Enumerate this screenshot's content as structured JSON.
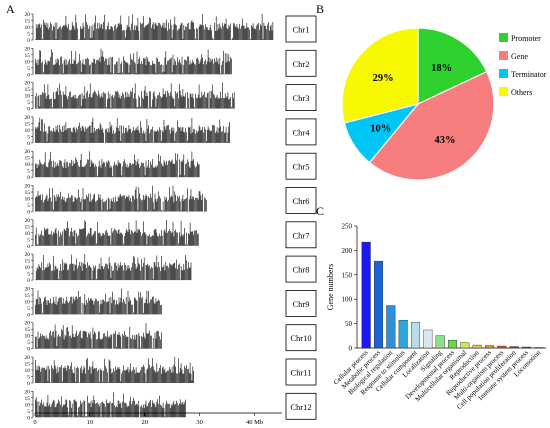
{
  "panel_letters": {
    "a": "A",
    "b": "B",
    "c": "C"
  },
  "chart_data": [
    {
      "type": "bar",
      "panel": "A",
      "chromosomes": [
        "Chr1",
        "Chr2",
        "Chr3",
        "Chr4",
        "Chr5",
        "Chr6",
        "Chr7",
        "Chr8",
        "Chr9",
        "Chr10",
        "Chr11",
        "Chr12"
      ],
      "chromosome_length_mb": [
        43.3,
        35.9,
        36.4,
        35.5,
        30.0,
        31.2,
        29.7,
        28.4,
        23.0,
        23.2,
        29.0,
        27.5
      ],
      "ylim": [
        0,
        20
      ],
      "yticks": [
        "0",
        "5",
        "10",
        "15",
        "20"
      ],
      "xlim": [
        0,
        45
      ],
      "xticks": [
        "0",
        "10",
        "20",
        "30",
        "40 Mb"
      ],
      "xtick_values": [
        0,
        10,
        20,
        30,
        40
      ],
      "xlabel": "",
      "ylabel": ""
    },
    {
      "type": "pie",
      "panel": "B",
      "labels": [
        "Promoter",
        "Gene",
        "Terminator",
        "Others"
      ],
      "values": [
        18,
        43,
        10,
        29
      ],
      "value_labels": [
        "18%",
        "43%",
        "10%",
        "29%"
      ],
      "colors": [
        "#2fd12f",
        "#f77e7e",
        "#00c6f5",
        "#f8f800"
      ],
      "legend": "right"
    },
    {
      "type": "bar",
      "panel": "C",
      "categories": [
        "Cellular process",
        "Metabolic process",
        "Biological regulation",
        "Response to stimulus",
        "Cellular component",
        "Localization",
        "Signaling",
        "Developmental process",
        "Multicellular organismal",
        "Reproduction",
        "Reproductive process",
        "Multi-organism process",
        "Cell population proliferation",
        "Immune system process",
        "Locomotion"
      ],
      "values": [
        217,
        178,
        87,
        57,
        53,
        37,
        25,
        16,
        11,
        6,
        5,
        4,
        3,
        2,
        1
      ],
      "colors": [
        "#1a1aef",
        "#1a64d6",
        "#2f8fd8",
        "#2ba6e0",
        "#b9dcea",
        "#d8e9ee",
        "#8ee089",
        "#67d84a",
        "#d5e64c",
        "#efc22b",
        "#ef8a1c",
        "#e0531e",
        "#d63019",
        "#c31a13",
        "#aa1010"
      ],
      "ylabel": "Gene numbers",
      "ylim": [
        0,
        250
      ],
      "yticks": [
        "0",
        "50",
        "100",
        "150",
        "200",
        "250"
      ]
    }
  ]
}
